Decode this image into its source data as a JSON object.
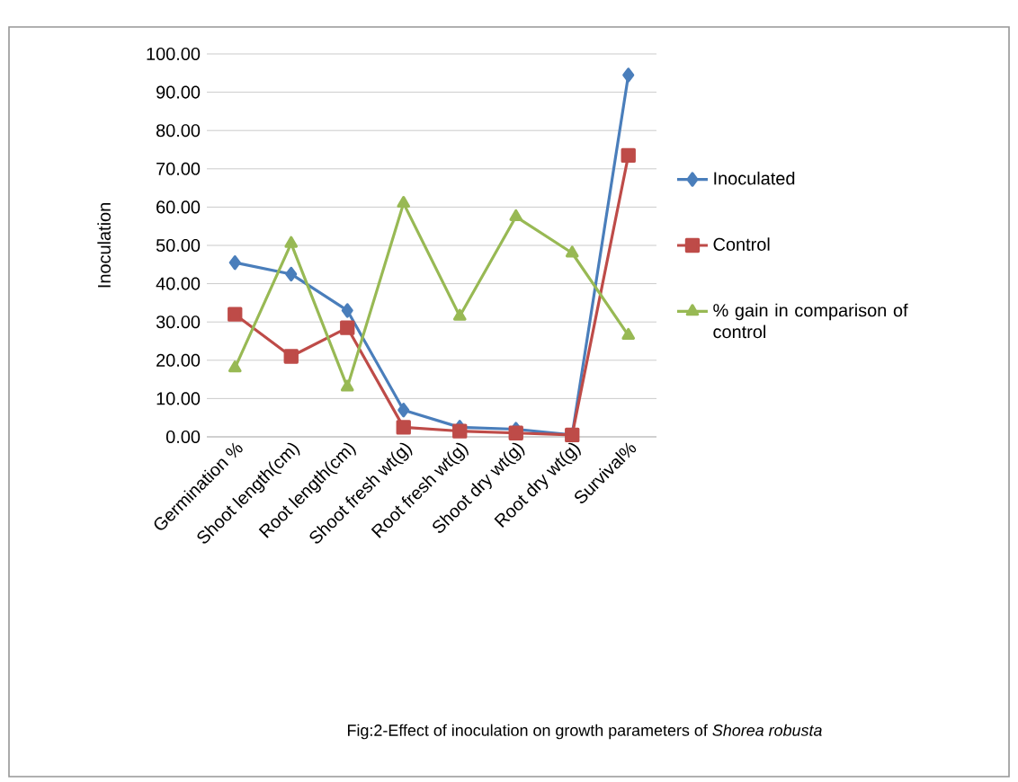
{
  "chart_data": {
    "type": "line",
    "title": "Fig:2-Effect of  inoculation  on growth parameters  of *Shorea robusta*",
    "ylabel": "Inoculation",
    "categories": [
      "Germination %",
      "Shoot length(cm)",
      "Root length(cm)",
      "Shoot fresh wt(g)",
      "Root fresh wt(g)",
      "Shoot dry wt(g)",
      "Root  dry  wt(g)",
      "Survival%"
    ],
    "series": [
      {
        "name": "Inoculated",
        "color": "#4a7ebb",
        "marker": "diamond",
        "values": [
          45.5,
          42.5,
          33,
          7,
          2.5,
          2,
          0.5,
          94.5
        ]
      },
      {
        "name": "Control",
        "color": "#be4b48",
        "marker": "square",
        "values": [
          32,
          21,
          28.5,
          2.5,
          1.5,
          1,
          0.5,
          73.5
        ]
      },
      {
        "name": "% gain in comparison of control",
        "color": "#98b954",
        "marker": "triangle",
        "values": [
          18,
          50.5,
          13,
          61,
          31.5,
          57.5,
          48,
          26.5
        ]
      }
    ],
    "ylim": [
      0,
      100
    ],
    "yticks": [
      {
        "value": 0,
        "label": "0.00"
      },
      {
        "value": 10,
        "label": "10.00"
      },
      {
        "value": 20,
        "label": "20.00"
      },
      {
        "value": 30,
        "label": "30.00"
      },
      {
        "value": 40,
        "label": "40.00"
      },
      {
        "value": 50,
        "label": "50.00"
      },
      {
        "value": 60,
        "label": "60.00"
      },
      {
        "value": 70,
        "label": "70.00"
      },
      {
        "value": 80,
        "label": "80.00"
      },
      {
        "value": 90,
        "label": "90.00"
      },
      {
        "value": 100,
        "label": "100.00"
      }
    ],
    "grid": "y",
    "legend": "right",
    "line_style": "solid"
  }
}
